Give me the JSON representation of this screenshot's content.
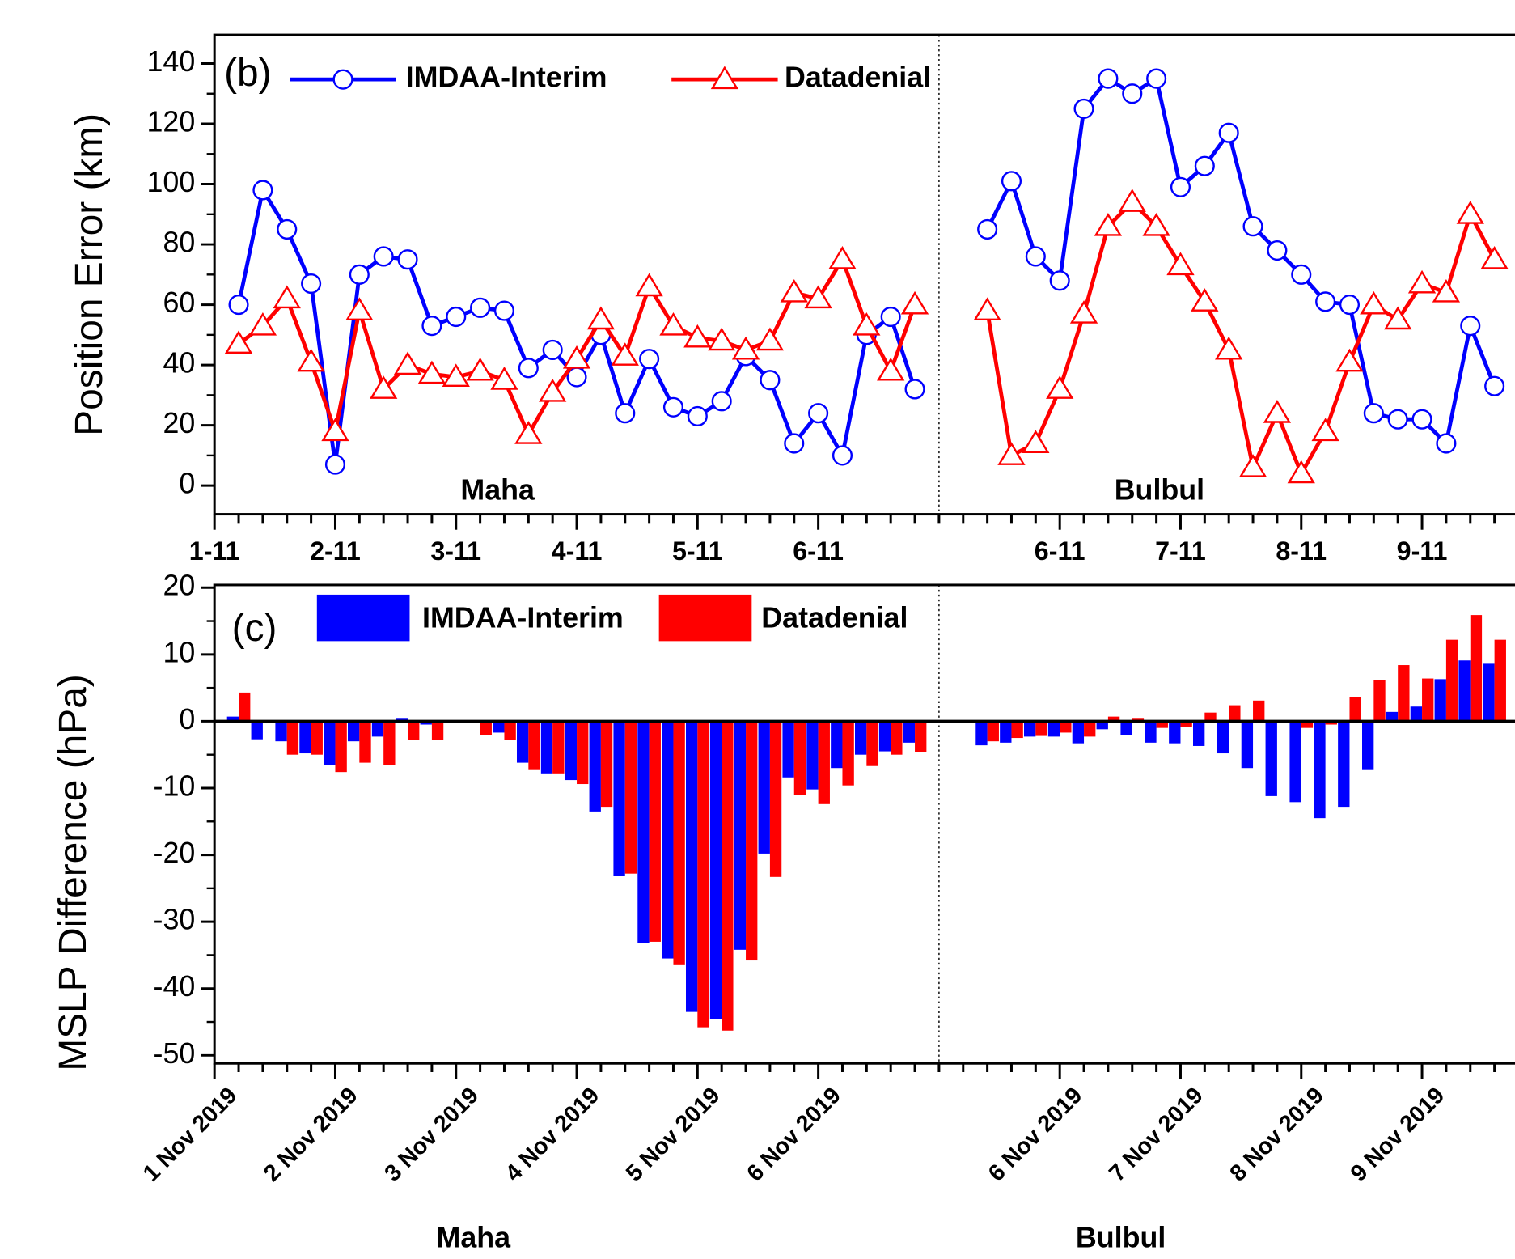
{
  "chart_data": [
    {
      "type": "line",
      "ylabel": "Position Error (km)",
      "annotations": [
        "(b)",
        "Maha",
        "Bulbul"
      ],
      "xlim": [
        0,
        53.85
      ],
      "ylim": [
        -9.5,
        149.5
      ],
      "yticks": [
        0,
        20,
        40,
        60,
        80,
        100,
        120,
        140
      ],
      "categories": [
        "1-11",
        null,
        null,
        null,
        null,
        "2-11",
        null,
        null,
        null,
        null,
        "3-11",
        null,
        null,
        null,
        null,
        "4-11",
        null,
        null,
        null,
        null,
        "5-11",
        null,
        null,
        null,
        null,
        "6-11",
        null,
        null,
        null,
        null,
        null,
        null,
        null,
        null,
        null,
        "6-11",
        null,
        null,
        null,
        null,
        "7-11",
        null,
        null,
        null,
        null,
        "8-11",
        null,
        null,
        null,
        null,
        "9-11",
        null,
        null,
        null
      ],
      "series": [
        {
          "name": "IMDAA-Interim",
          "color": "#0000ff",
          "marker": "circle",
          "values": [
            null,
            60,
            98,
            85,
            67,
            7,
            70,
            76,
            75,
            53,
            56,
            59,
            58,
            39,
            45,
            36,
            50,
            24,
            42,
            26,
            23,
            28,
            43,
            35,
            14,
            24,
            10,
            50,
            56,
            32,
            null,
            null,
            85,
            101,
            76,
            68,
            125,
            135,
            130,
            135,
            99,
            106,
            117,
            86,
            78,
            70,
            61,
            60,
            24,
            22,
            22,
            14,
            53,
            33
          ]
        },
        {
          "name": "Datadenial",
          "color": "#ff0000",
          "marker": "triangle",
          "values": [
            null,
            47,
            53,
            62,
            41,
            18,
            58,
            32,
            40,
            37,
            36,
            38,
            35,
            17,
            31,
            42,
            55,
            43,
            66,
            53,
            49,
            48,
            45,
            48,
            64,
            62,
            75,
            53,
            38,
            60,
            null,
            null,
            58,
            10,
            14,
            32,
            57,
            86,
            94,
            86,
            73,
            61,
            45,
            6,
            24,
            4,
            18,
            41,
            60,
            55,
            67,
            64,
            90,
            75
          ]
        }
      ]
    },
    {
      "type": "bar",
      "ylabel": "MSLP Difference (hPa)",
      "annotations": [
        "(c)",
        "Maha",
        "Bulbul"
      ],
      "xlim": [
        0,
        53.85
      ],
      "ylim": [
        -51.2,
        20.4
      ],
      "yticks": [
        -50,
        -40,
        -30,
        -20,
        -10,
        0,
        10,
        20
      ],
      "categories": [
        "1 Nov 2019",
        null,
        null,
        null,
        null,
        "2 Nov 2019",
        null,
        null,
        null,
        null,
        "3 Nov 2019",
        null,
        null,
        null,
        null,
        "4 Nov 2019",
        null,
        null,
        null,
        null,
        "5 Nov 2019",
        null,
        null,
        null,
        null,
        "6 Nov 2019",
        null,
        null,
        null,
        null,
        null,
        null,
        null,
        null,
        null,
        "6 Nov 2019",
        null,
        null,
        null,
        null,
        "7 Nov 2019",
        null,
        null,
        null,
        null,
        "8 Nov 2019",
        null,
        null,
        null,
        null,
        "9 Nov 2019",
        null,
        null,
        null
      ],
      "series": [
        {
          "name": "IMDAA-Interim",
          "color": "#0000ff",
          "values": [
            null,
            0.7,
            -2.7,
            -3,
            -4.8,
            -6.5,
            -3,
            -2.3,
            0.5,
            -0.5,
            -0.3,
            -0.3,
            -1.7,
            -6.2,
            -7.8,
            -8.8,
            -13.5,
            -23.2,
            -33.2,
            -35.5,
            -43.5,
            -44.6,
            -34.2,
            -19.8,
            -8.4,
            -10.2,
            -7,
            -5,
            -4.5,
            -3.2,
            null,
            null,
            -3.6,
            -3.2,
            -2.3,
            -2.3,
            -3.3,
            -1.2,
            -2.1,
            -3.2,
            -3.3,
            -3.7,
            -4.8,
            -7,
            -11.2,
            -12.1,
            -14.5,
            -12.8,
            -7.3,
            1.4,
            2.2,
            6.3,
            9.1,
            8.6
          ]
        },
        {
          "name": "Datadenial",
          "color": "#ff0000",
          "values": [
            null,
            4.3,
            -0.3,
            -5,
            -5,
            -7.6,
            -6.2,
            -6.6,
            -2.8,
            -2.8,
            -0.2,
            -2.1,
            -2.8,
            -7.3,
            -7.8,
            -9.4,
            -12.8,
            -22.8,
            -33,
            -36.5,
            -45.8,
            -46.3,
            -35.8,
            -23.3,
            -11,
            -12.4,
            -9.6,
            -6.7,
            -5,
            -4.6,
            null,
            null,
            -3,
            -2.5,
            -2.2,
            -1.7,
            -2.3,
            0.7,
            0.5,
            -1,
            -0.8,
            1.3,
            2.4,
            3.1,
            -0.3,
            -1,
            -0.5,
            3.6,
            6.2,
            8.4,
            6.4,
            12.2,
            15.9,
            12.2
          ]
        }
      ]
    }
  ]
}
